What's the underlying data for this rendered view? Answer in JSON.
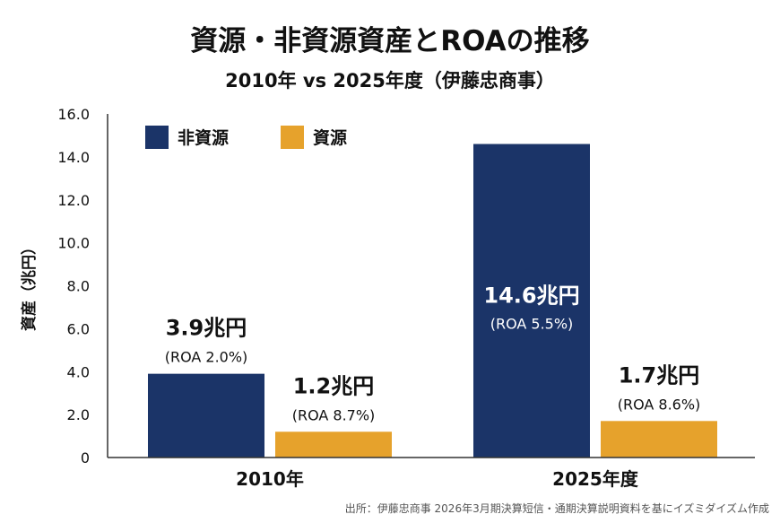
{
  "chart_data": {
    "type": "bar",
    "title": "資源・非資源資産とROAの推移",
    "subtitle": "2010年 vs 2025年度（伊藤忠商事）",
    "ylabel": "資産（兆円）",
    "xlabel": "",
    "ylim": [
      0,
      16
    ],
    "yticks": [
      "0",
      "2.0",
      "4.0",
      "6.0",
      "8.0",
      "10.0",
      "12.0",
      "14.0",
      "16.0"
    ],
    "categories": [
      "2010年",
      "2025年度"
    ],
    "legend_position": "top-left",
    "grid": false,
    "series": [
      {
        "name": "非資源",
        "color": "#1b3468",
        "values": [
          3.9,
          14.6
        ],
        "labels": [
          "3.9兆円",
          "14.6兆円"
        ],
        "roa": [
          "(ROA 2.0%)",
          "(ROA 5.5%)"
        ]
      },
      {
        "name": "資源",
        "color": "#e6a22c",
        "values": [
          1.2,
          1.7
        ],
        "labels": [
          "1.2兆円",
          "1.7兆円"
        ],
        "roa": [
          "(ROA 8.7%)",
          "(ROA 8.6%)"
        ]
      }
    ],
    "source": "出所：伊藤忠商事 2026年3月期決算短信・通期決算説明資料を基にイズミダイズム作成"
  }
}
